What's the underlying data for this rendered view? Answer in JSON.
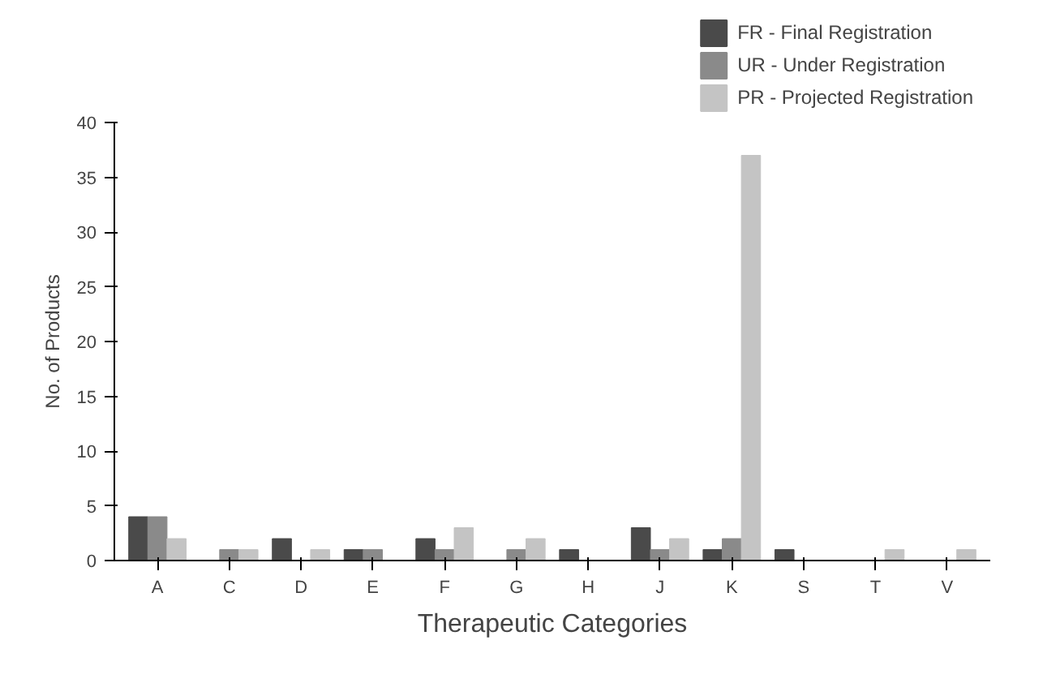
{
  "chart_data": {
    "type": "bar",
    "xlabel": "Therapeutic Categories",
    "ylabel": "No. of Products",
    "categories": [
      "A",
      "C",
      "D",
      "E",
      "F",
      "G",
      "H",
      "J",
      "K",
      "S",
      "T",
      "V"
    ],
    "series": [
      {
        "name": "FR - Final Registration",
        "color": "#4a4a4a",
        "values": [
          4,
          0,
          2,
          1,
          2,
          0,
          1,
          3,
          1,
          1,
          0,
          0
        ]
      },
      {
        "name": "UR - Under Registration",
        "color": "#8a8a8a",
        "values": [
          4,
          1,
          0,
          1,
          1,
          1,
          0,
          1,
          2,
          0,
          0,
          0
        ]
      },
      {
        "name": "PR - Projected Registration",
        "color": "#c4c4c4",
        "values": [
          2,
          1,
          1,
          0,
          3,
          2,
          0,
          2,
          37,
          0,
          1,
          1
        ]
      }
    ],
    "ylim": [
      0,
      40
    ],
    "yticks": [
      0,
      5,
      10,
      15,
      20,
      25,
      30,
      35,
      40
    ],
    "grid": false,
    "legend": "top right"
  }
}
